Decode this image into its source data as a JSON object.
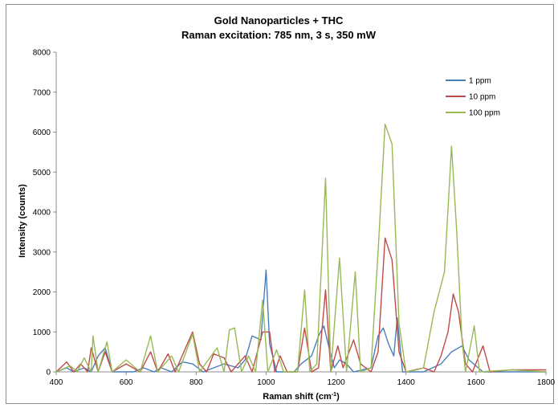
{
  "chart_data": {
    "type": "line",
    "title": "Gold Nanoparticles + THC",
    "subtitle": "Raman excitation: 785 nm, 3 s, 350 mW",
    "xlabel_main": "Raman shift (cm",
    "xlabel_sup": "-1",
    "xlabel_end": ")",
    "ylabel": "Intensity (counts)",
    "xlim": [
      400,
      1800
    ],
    "ylim": [
      0,
      8000
    ],
    "xticks": [
      400,
      600,
      800,
      1000,
      1200,
      1400,
      1600,
      1800
    ],
    "yticks": [
      0,
      1000,
      2000,
      3000,
      4000,
      5000,
      6000,
      7000,
      8000
    ],
    "grid": false,
    "legend_position": "top-right",
    "series": [
      {
        "name": "1 ppm",
        "color": "#4a7ebb",
        "points": [
          [
            400,
            0
          ],
          [
            430,
            100
          ],
          [
            450,
            0
          ],
          [
            480,
            100
          ],
          [
            500,
            0
          ],
          [
            520,
            400
          ],
          [
            540,
            600
          ],
          [
            560,
            0
          ],
          [
            620,
            0
          ],
          [
            650,
            100
          ],
          [
            680,
            0
          ],
          [
            700,
            100
          ],
          [
            730,
            0
          ],
          [
            760,
            250
          ],
          [
            790,
            200
          ],
          [
            820,
            0
          ],
          [
            850,
            100
          ],
          [
            880,
            200
          ],
          [
            920,
            100
          ],
          [
            940,
            300
          ],
          [
            960,
            900
          ],
          [
            985,
            800
          ],
          [
            1000,
            2550
          ],
          [
            1010,
            700
          ],
          [
            1030,
            0
          ],
          [
            1080,
            0
          ],
          [
            1100,
            200
          ],
          [
            1130,
            400
          ],
          [
            1150,
            900
          ],
          [
            1165,
            1150
          ],
          [
            1180,
            600
          ],
          [
            1195,
            100
          ],
          [
            1210,
            300
          ],
          [
            1230,
            200
          ],
          [
            1250,
            0
          ],
          [
            1300,
            100
          ],
          [
            1320,
            900
          ],
          [
            1335,
            1100
          ],
          [
            1350,
            700
          ],
          [
            1365,
            400
          ],
          [
            1375,
            1350
          ],
          [
            1390,
            0
          ],
          [
            1450,
            0
          ],
          [
            1500,
            200
          ],
          [
            1530,
            500
          ],
          [
            1560,
            650
          ],
          [
            1580,
            300
          ],
          [
            1620,
            0
          ],
          [
            1700,
            0
          ],
          [
            1800,
            0
          ]
        ]
      },
      {
        "name": "10 ppm",
        "color": "#be4b48",
        "points": [
          [
            400,
            0
          ],
          [
            430,
            250
          ],
          [
            450,
            0
          ],
          [
            470,
            200
          ],
          [
            490,
            0
          ],
          [
            500,
            600
          ],
          [
            520,
            0
          ],
          [
            540,
            500
          ],
          [
            560,
            0
          ],
          [
            600,
            200
          ],
          [
            640,
            0
          ],
          [
            670,
            500
          ],
          [
            690,
            0
          ],
          [
            720,
            450
          ],
          [
            740,
            0
          ],
          [
            790,
            1000
          ],
          [
            810,
            200
          ],
          [
            830,
            0
          ],
          [
            850,
            450
          ],
          [
            880,
            350
          ],
          [
            900,
            0
          ],
          [
            940,
            400
          ],
          [
            960,
            0
          ],
          [
            990,
            1000
          ],
          [
            1010,
            1000
          ],
          [
            1025,
            0
          ],
          [
            1040,
            400
          ],
          [
            1060,
            0
          ],
          [
            1090,
            0
          ],
          [
            1110,
            1100
          ],
          [
            1130,
            0
          ],
          [
            1150,
            100
          ],
          [
            1170,
            2050
          ],
          [
            1185,
            0
          ],
          [
            1205,
            650
          ],
          [
            1220,
            100
          ],
          [
            1250,
            800
          ],
          [
            1270,
            200
          ],
          [
            1300,
            0
          ],
          [
            1320,
            500
          ],
          [
            1340,
            3350
          ],
          [
            1360,
            2800
          ],
          [
            1380,
            500
          ],
          [
            1400,
            0
          ],
          [
            1450,
            100
          ],
          [
            1480,
            0
          ],
          [
            1500,
            400
          ],
          [
            1520,
            1000
          ],
          [
            1535,
            1950
          ],
          [
            1550,
            1500
          ],
          [
            1570,
            200
          ],
          [
            1590,
            0
          ],
          [
            1620,
            650
          ],
          [
            1640,
            0
          ],
          [
            1700,
            50
          ],
          [
            1800,
            50
          ]
        ]
      },
      {
        "name": "100 ppm",
        "color": "#98b954",
        "points": [
          [
            400,
            0
          ],
          [
            440,
            150
          ],
          [
            460,
            0
          ],
          [
            480,
            350
          ],
          [
            500,
            0
          ],
          [
            505,
            900
          ],
          [
            520,
            0
          ],
          [
            545,
            750
          ],
          [
            560,
            0
          ],
          [
            600,
            300
          ],
          [
            640,
            0
          ],
          [
            670,
            900
          ],
          [
            690,
            0
          ],
          [
            730,
            400
          ],
          [
            750,
            0
          ],
          [
            790,
            950
          ],
          [
            810,
            0
          ],
          [
            860,
            600
          ],
          [
            880,
            0
          ],
          [
            895,
            1050
          ],
          [
            910,
            1100
          ],
          [
            930,
            0
          ],
          [
            950,
            400
          ],
          [
            970,
            0
          ],
          [
            990,
            1800
          ],
          [
            1005,
            0
          ],
          [
            1030,
            550
          ],
          [
            1050,
            0
          ],
          [
            1090,
            0
          ],
          [
            1110,
            2050
          ],
          [
            1125,
            0
          ],
          [
            1145,
            200
          ],
          [
            1170,
            4850
          ],
          [
            1185,
            0
          ],
          [
            1210,
            2850
          ],
          [
            1230,
            0
          ],
          [
            1255,
            2500
          ],
          [
            1270,
            0
          ],
          [
            1300,
            100
          ],
          [
            1320,
            3000
          ],
          [
            1340,
            6200
          ],
          [
            1360,
            5700
          ],
          [
            1380,
            1200
          ],
          [
            1400,
            0
          ],
          [
            1430,
            50
          ],
          [
            1450,
            100
          ],
          [
            1480,
            1500
          ],
          [
            1510,
            2500
          ],
          [
            1530,
            5650
          ],
          [
            1545,
            3500
          ],
          [
            1560,
            800
          ],
          [
            1570,
            0
          ],
          [
            1595,
            1150
          ],
          [
            1610,
            0
          ],
          [
            1700,
            50
          ],
          [
            1800,
            0
          ]
        ]
      }
    ]
  }
}
